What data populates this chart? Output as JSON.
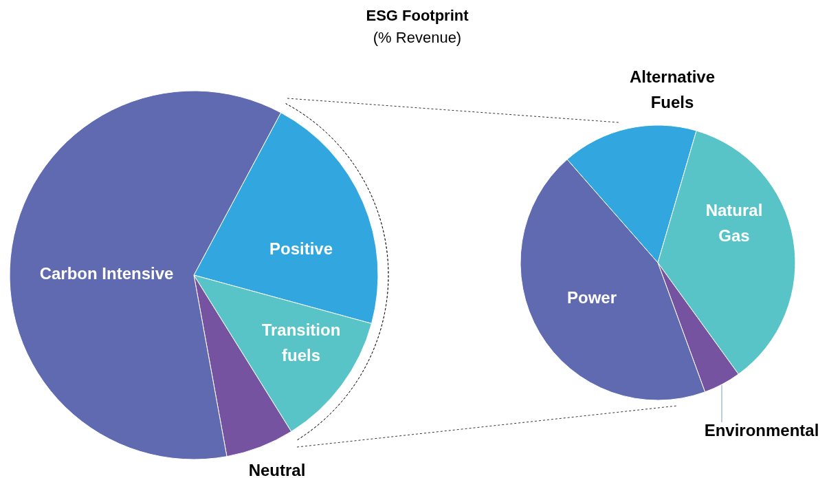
{
  "chart_data": [
    {
      "type": "pie",
      "title": "ESG Footprint",
      "subtitle": "(% Revenue)",
      "categories": [
        "Positive",
        "Transition fuels",
        "Neutral",
        "Carbon Intensive"
      ],
      "values": [
        21.4,
        11.9,
        6.0,
        60.7
      ],
      "colors": [
        "#32a7df",
        "#58c4c8",
        "#7553a0",
        "#5f6ab0"
      ]
    },
    {
      "type": "pie",
      "categories": [
        "Alternative Fuels",
        "Natural Gas",
        "Environmental",
        "Power"
      ],
      "values": [
        16.0,
        35.5,
        4.4,
        44.1
      ],
      "colors": [
        "#32a7df",
        "#58c4c8",
        "#7553a0",
        "#5f6ab0"
      ]
    }
  ]
}
